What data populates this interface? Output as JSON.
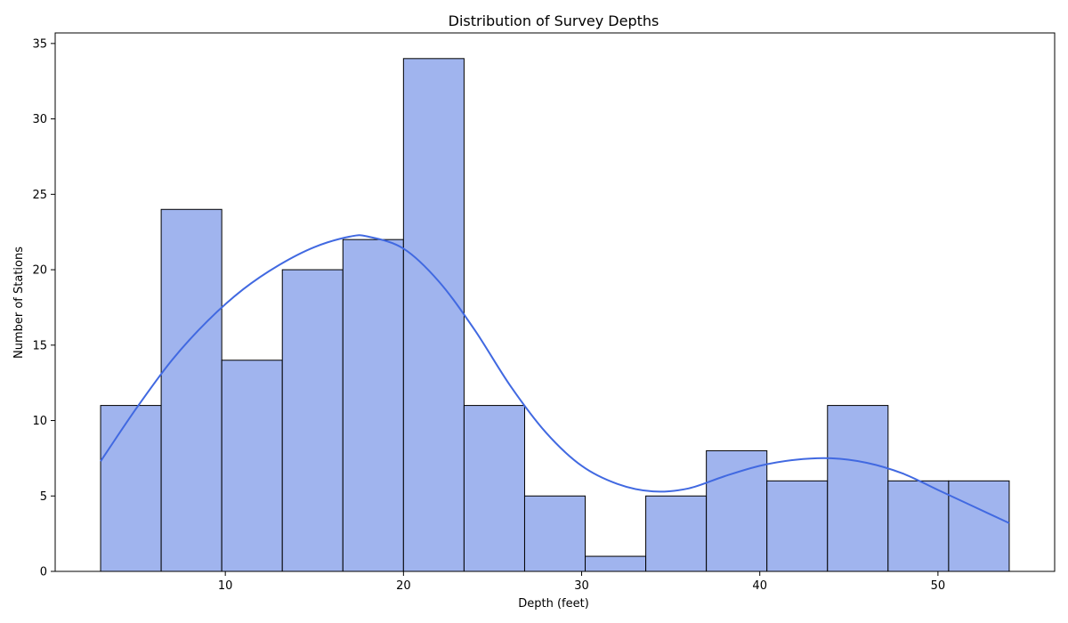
{
  "chart_data": {
    "type": "bar",
    "title": "Distribution of Survey Depths",
    "xlabel": "Depth (feet)",
    "ylabel": "Number of Stations",
    "bin_edges": [
      3.0,
      6.4,
      9.8,
      13.2,
      16.6,
      20.0,
      23.4,
      26.8,
      30.2,
      33.6,
      37.0,
      40.4,
      43.8,
      47.2,
      50.6,
      54.0
    ],
    "values": [
      11,
      24,
      14,
      20,
      22,
      34,
      11,
      5,
      1,
      5,
      8,
      6,
      11,
      6,
      6
    ],
    "xlim": [
      0.45,
      56.55
    ],
    "ylim": [
      0,
      35.7
    ],
    "xticks": [
      10,
      20,
      30,
      40,
      50
    ],
    "yticks": [
      0,
      5,
      10,
      15,
      20,
      25,
      30,
      35
    ],
    "kde": {
      "x": [
        3,
        5,
        7,
        9,
        11,
        13,
        15,
        17,
        18,
        20,
        22,
        24,
        26,
        28,
        30,
        32,
        34,
        36,
        38,
        40,
        42,
        44,
        46,
        48,
        50,
        52,
        54
      ],
      "y": [
        7.3,
        10.8,
        14.0,
        16.6,
        18.7,
        20.3,
        21.5,
        22.2,
        22.2,
        21.4,
        19.2,
        16.0,
        12.3,
        9.2,
        7.0,
        5.8,
        5.3,
        5.5,
        6.3,
        7.0,
        7.4,
        7.5,
        7.2,
        6.5,
        5.4,
        4.3,
        3.2
      ]
    },
    "grid": false,
    "legend": "none",
    "colors": {
      "bar_fill": "#a0b4ee",
      "bar_edge": "#000000",
      "kde_line": "#4169e1"
    }
  }
}
